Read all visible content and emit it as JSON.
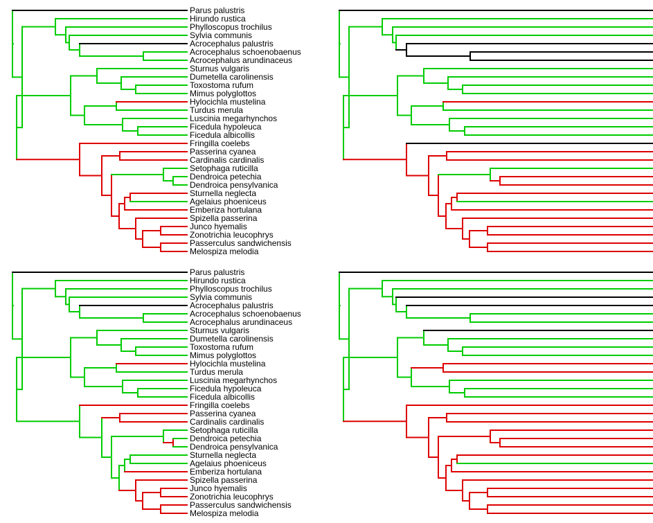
{
  "figure": {
    "title": "",
    "panels": [
      {
        "id": "top-left"
      },
      {
        "id": "top-right"
      },
      {
        "id": "bottom-left"
      },
      {
        "id": "bottom-right"
      }
    ]
  },
  "colors": {
    "green": "#00cc00",
    "red": "#dd0000",
    "black": "#000000"
  },
  "species": [
    "Parus palustris",
    "Hirundo rustica",
    "Phylloscopus trochilus",
    "Sylvia communis",
    "Acrocephalus palustris",
    "Acrocephalus schoenobaenus",
    "Acrocephalus arundinaceus",
    "Sturnus vulgaris",
    "Dumetella carolinensis",
    "Toxostoma rufum",
    "Mimus polyglottos",
    "Hylocichla mustelina",
    "Turdus merula",
    "Luscinia megarhynchos",
    "Ficedula hypoleuca",
    "Ficedula albicollis",
    "Fringilla coelebs",
    "Passerina cyanea",
    "Cardinalis cardinalis",
    "Setophaga ruticilla",
    "Dendroica petechia",
    "Dendroica pensylvanica",
    "Sturnella neglecta",
    "Agelaius phoeniceus",
    "Emberiza hortulana",
    "Spizella passerina",
    "Junco hyemalis",
    "Zonotrichia leucophrys",
    "Passerculus sandwichensis",
    "Melospiza melodia"
  ]
}
